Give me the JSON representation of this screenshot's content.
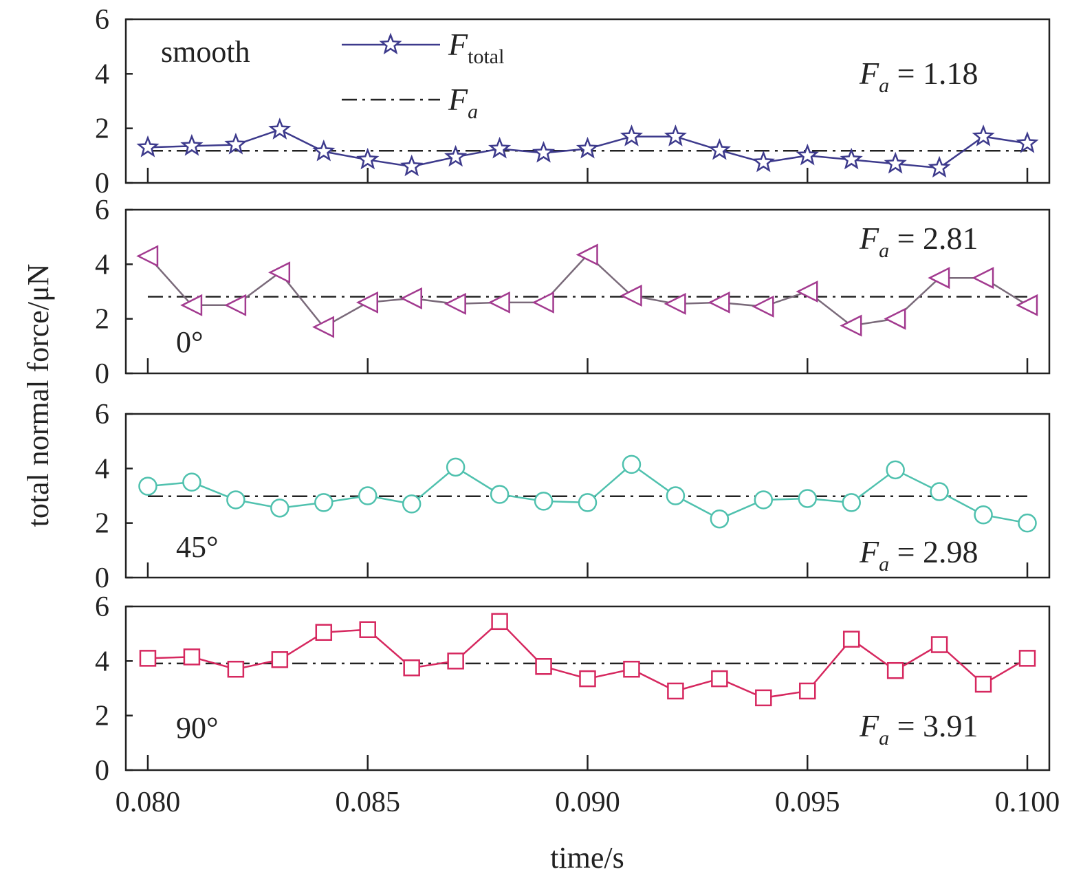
{
  "chart_data": {
    "type": "line",
    "xlabel": "time/s",
    "ylabel": "total normal force/μN",
    "xlim": [
      0.0795,
      0.1005
    ],
    "ylim": [
      0,
      6
    ],
    "x_ticks": [
      "0.080",
      "0.085",
      "0.090",
      "0.095",
      "0.100"
    ],
    "y_ticks": [
      "0",
      "2",
      "4",
      "6"
    ],
    "legend": {
      "entries": [
        {
          "symbol": "F",
          "subscript": "total",
          "style": "solid line with star marker"
        },
        {
          "symbol": "F",
          "subscript": "a",
          "style": "dash-dot line"
        }
      ],
      "placement": "top-center of first panel"
    },
    "x": [
      0.08,
      0.081,
      0.082,
      0.083,
      0.084,
      0.085,
      0.086,
      0.087,
      0.088,
      0.089,
      0.09,
      0.091,
      0.092,
      0.093,
      0.094,
      0.095,
      0.096,
      0.097,
      0.098,
      0.099,
      0.1
    ],
    "panels": [
      {
        "label": "smooth",
        "fa_symbol": "F",
        "fa_sub": "a",
        "fa_eq": " = 1.18",
        "fa_value": 1.18,
        "marker": "star",
        "line_color": "#3d3a8c",
        "marker_edge": "#3d3a8c",
        "marker_fill": "#ffffff",
        "values": [
          1.3,
          1.35,
          1.4,
          1.95,
          1.15,
          0.85,
          0.6,
          0.95,
          1.25,
          1.1,
          1.25,
          1.7,
          1.7,
          1.2,
          0.75,
          1.0,
          0.85,
          0.7,
          0.55,
          1.7,
          1.45
        ]
      },
      {
        "label": "0°",
        "fa_symbol": "F",
        "fa_sub": "a",
        "fa_eq": " = 2.81",
        "fa_value": 2.81,
        "marker": "triangle-left",
        "line_color": "#7a6a7a",
        "marker_edge": "#a23a8f",
        "marker_fill": "#ffffff",
        "values": [
          4.3,
          2.5,
          2.5,
          3.7,
          1.7,
          2.6,
          2.75,
          2.55,
          2.6,
          2.6,
          4.35,
          2.85,
          2.55,
          2.6,
          2.45,
          3.0,
          1.75,
          2.0,
          3.5,
          3.5,
          2.5
        ]
      },
      {
        "label": "45°",
        "fa_symbol": "F",
        "fa_sub": "a",
        "fa_eq": " = 2.98",
        "fa_value": 2.98,
        "marker": "circle",
        "line_color": "#4fc1ae",
        "marker_edge": "#4fc1ae",
        "marker_fill": "#ffffff",
        "values": [
          3.35,
          3.5,
          2.85,
          2.55,
          2.75,
          3.0,
          2.7,
          4.05,
          3.05,
          2.8,
          2.75,
          4.15,
          3.0,
          2.15,
          2.85,
          2.9,
          2.75,
          3.95,
          3.15,
          2.3,
          2.0
        ]
      },
      {
        "label": "90°",
        "fa_symbol": "F",
        "fa_sub": "a",
        "fa_eq": " = 3.91",
        "fa_value": 3.91,
        "marker": "square",
        "line_color": "#d6285f",
        "marker_edge": "#d6285f",
        "marker_fill": "#ffffff",
        "values": [
          4.1,
          4.15,
          3.7,
          4.05,
          5.05,
          5.15,
          3.75,
          4.0,
          5.45,
          3.8,
          3.35,
          3.7,
          2.9,
          3.35,
          2.65,
          2.9,
          4.8,
          3.65,
          4.6,
          3.15,
          4.1
        ]
      }
    ]
  }
}
